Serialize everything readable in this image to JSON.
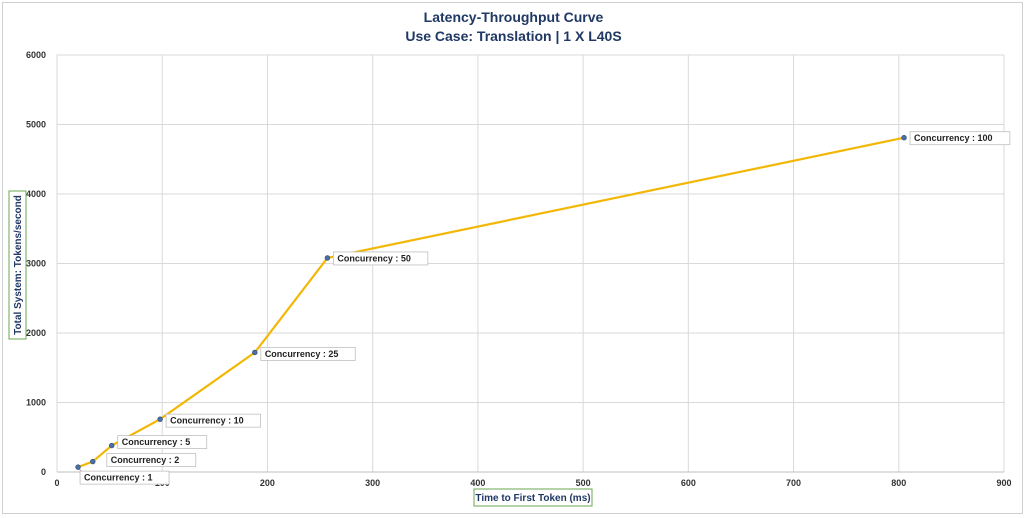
{
  "chart_data": {
    "type": "line",
    "title": "Latency-Throughput Curve",
    "subtitle": "Use Case: Translation | 1 X L40S",
    "xlabel": "Time to First Token (ms)",
    "ylabel": "Total System: Tokens/second",
    "xlim": [
      0,
      900
    ],
    "ylim": [
      0,
      6000
    ],
    "x_ticks": [
      0,
      100,
      200,
      300,
      400,
      500,
      600,
      700,
      800,
      900
    ],
    "y_ticks": [
      0,
      1000,
      2000,
      3000,
      4000,
      5000,
      6000
    ],
    "grid": true,
    "line_color": "#f2b705",
    "marker_color": "#4a6fa5",
    "points": [
      {
        "x": 20,
        "y": 70,
        "label": "Concurrency : 1"
      },
      {
        "x": 34,
        "y": 150,
        "label": "Concurrency : 2"
      },
      {
        "x": 52,
        "y": 380,
        "label": "Concurrency : 5"
      },
      {
        "x": 98,
        "y": 760,
        "label": "Concurrency : 10"
      },
      {
        "x": 188,
        "y": 1720,
        "label": "Concurrency : 25"
      },
      {
        "x": 257,
        "y": 3080,
        "label": "Concurrency : 50"
      },
      {
        "x": 805,
        "y": 4810,
        "label": "Concurrency : 100"
      }
    ]
  }
}
